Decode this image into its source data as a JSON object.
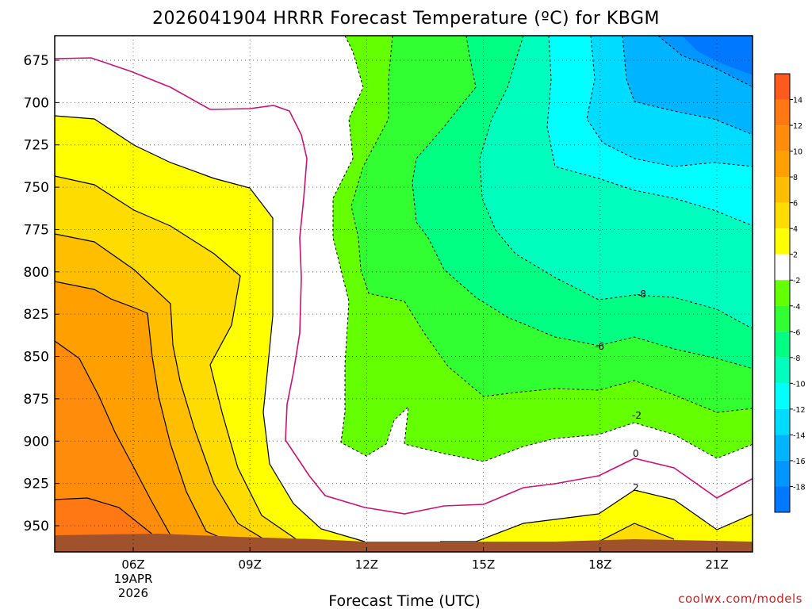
{
  "chart_data": {
    "type": "heatmap",
    "title": "2026041904 HRRR Forecast Temperature (ºC) for KBGM",
    "xlabel": "Forecast Time (UTC)",
    "ylabel": "",
    "credit": "coolwx.com/models",
    "x_ticks": [
      "06Z",
      "09Z",
      "12Z",
      "15Z",
      "18Z",
      "21Z"
    ],
    "x_date_lines": [
      "19APR",
      "2026"
    ],
    "y_ticks": [
      675,
      700,
      725,
      750,
      775,
      800,
      825,
      850,
      875,
      900,
      925,
      950
    ],
    "y_axis": "pressure (hPa), decreasing upward",
    "grid": true,
    "colorbar": {
      "labels": [
        "14",
        "12",
        "10",
        "8",
        "6",
        "4",
        "2",
        "-2",
        "-4",
        "-6",
        "-8",
        "-10",
        "-12",
        "-14",
        "-16",
        "-18"
      ],
      "bins": [
        {
          "color": "#ff5a1e"
        },
        {
          "color": "#ff7814"
        },
        {
          "color": "#ff8c0a"
        },
        {
          "color": "#ffa000"
        },
        {
          "color": "#ffbe00"
        },
        {
          "color": "#ffdc00"
        },
        {
          "color": "#ffff00"
        },
        {
          "color": "#ffffff"
        },
        {
          "color": "#64ff00"
        },
        {
          "color": "#32ff32"
        },
        {
          "color": "#00ff82"
        },
        {
          "color": "#00ffbe"
        },
        {
          "color": "#00ffff"
        },
        {
          "color": "#00dcff"
        },
        {
          "color": "#00b4ff"
        },
        {
          "color": "#0096ff"
        },
        {
          "color": "#0078ff"
        }
      ]
    },
    "contour_labels": [
      "-8",
      "-6",
      "-2",
      "0",
      "2"
    ],
    "colors": {
      "zero_isotherm": "#cc1177",
      "ground": "#a0522d"
    }
  }
}
